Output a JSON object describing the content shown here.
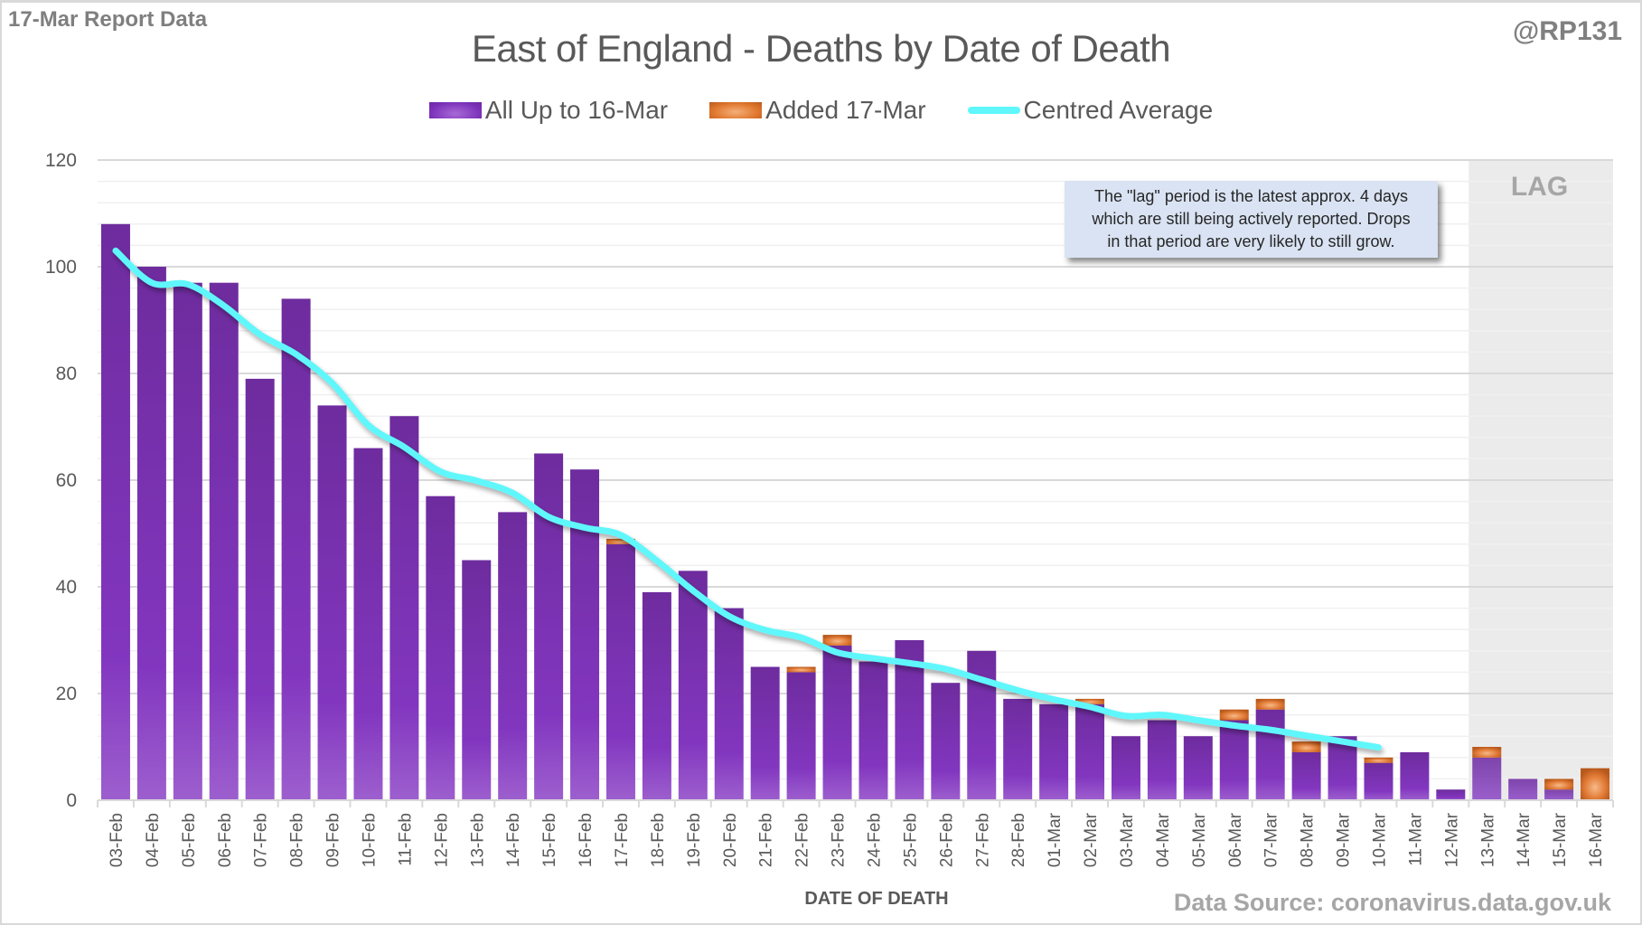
{
  "header": {
    "report_label": "17-Mar Report Data",
    "handle": "@RP131"
  },
  "colors": {
    "all_up_to": "#7a30b8",
    "added": "#e0772e",
    "centred_average": "#5ff7fb",
    "lag_shading": "#ebebeb",
    "note_background": "#dae3f3"
  },
  "note": {
    "lines": [
      "The \"lag\" period is the latest approx. 4 days",
      "which are still being actively reported.  Drops",
      "in that period are very likely to still grow."
    ]
  },
  "lag": {
    "label": "LAG",
    "from": "13-Mar",
    "to": "16-Mar"
  },
  "footer": {
    "source": "Data Source: coronavirus.data.gov.uk"
  },
  "chart_data": {
    "type": "bar",
    "stacked": true,
    "title": "East of England - Deaths by Date of Death",
    "xlabel": "DATE OF DEATH",
    "ylabel": "",
    "ylim": [
      0,
      120
    ],
    "yticks": [
      0,
      20,
      40,
      60,
      80,
      100,
      120
    ],
    "minor_grid_step": 4,
    "grid": true,
    "legend_position": "top-center",
    "categories": [
      "03-Feb",
      "04-Feb",
      "05-Feb",
      "06-Feb",
      "07-Feb",
      "08-Feb",
      "09-Feb",
      "10-Feb",
      "11-Feb",
      "12-Feb",
      "13-Feb",
      "14-Feb",
      "15-Feb",
      "16-Feb",
      "17-Feb",
      "18-Feb",
      "19-Feb",
      "20-Feb",
      "21-Feb",
      "22-Feb",
      "23-Feb",
      "24-Feb",
      "25-Feb",
      "26-Feb",
      "27-Feb",
      "28-Feb",
      "01-Mar",
      "02-Mar",
      "03-Mar",
      "04-Mar",
      "05-Mar",
      "06-Mar",
      "07-Mar",
      "08-Mar",
      "09-Mar",
      "10-Mar",
      "11-Mar",
      "12-Mar",
      "13-Mar",
      "14-Mar",
      "15-Mar",
      "16-Mar"
    ],
    "series": [
      {
        "name": "All Up to 16-Mar",
        "kind": "bar",
        "values": [
          108,
          100,
          97,
          97,
          79,
          94,
          74,
          66,
          72,
          57,
          45,
          54,
          65,
          62,
          48,
          39,
          43,
          36,
          25,
          24,
          29,
          26,
          30,
          22,
          28,
          19,
          18,
          18,
          12,
          15,
          12,
          15,
          17,
          9,
          12,
          7,
          9,
          2,
          8,
          4,
          2,
          0
        ]
      },
      {
        "name": "Added 17-Mar",
        "kind": "bar",
        "values": [
          0,
          0,
          0,
          0,
          0,
          0,
          0,
          0,
          0,
          0,
          0,
          0,
          0,
          0,
          1,
          0,
          0,
          0,
          0,
          1,
          2,
          0,
          0,
          0,
          0,
          0,
          0,
          1,
          0,
          0,
          0,
          2,
          2,
          2,
          0,
          1,
          0,
          0,
          2,
          0,
          2,
          6
        ]
      },
      {
        "name": "Centred Average",
        "kind": "line",
        "values": [
          103,
          97,
          96.7,
          92.7,
          87.3,
          83.6,
          78.2,
          70.3,
          66.2,
          61.6,
          59.9,
          57.6,
          53.1,
          51.1,
          49.7,
          44.9,
          39.3,
          34.5,
          31.9,
          30.5,
          27.7,
          26.6,
          25.7,
          24.6,
          22.6,
          20.6,
          18.9,
          17.5,
          15.8,
          16,
          15,
          14,
          13.2,
          12.1,
          11,
          9.9,
          null,
          null,
          null,
          null,
          null,
          null
        ]
      }
    ]
  }
}
